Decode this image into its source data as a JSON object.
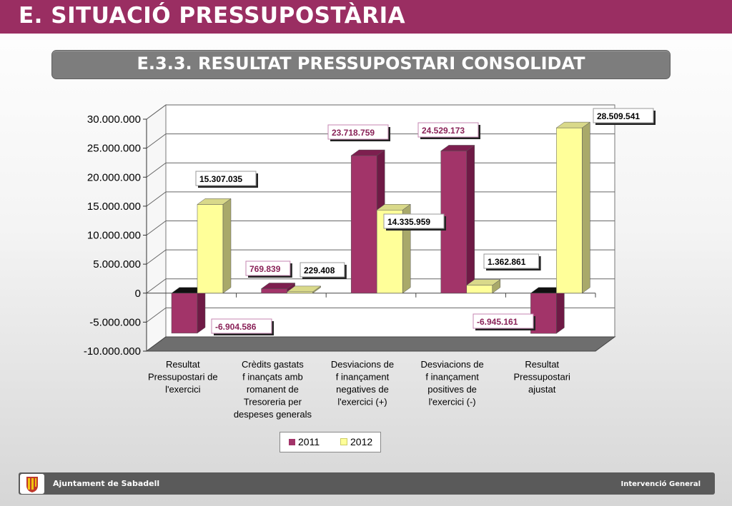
{
  "header": {
    "title": "E. SITUACIÓ PRESSUPOSTÀRIA",
    "subtitle": "E.3.3. RESULTAT PRESSUPOSTARI CONSOLIDAT"
  },
  "footer": {
    "left_label": "Ajuntament de Sabadell",
    "right_label": "Intervenció General"
  },
  "colors": {
    "header": "#9a2e62",
    "series_2011": "#a23469",
    "series_2012": "#ffff99"
  },
  "legend": {
    "position": "bottom-center"
  },
  "chart_data": {
    "type": "bar",
    "categories": [
      [
        "Resultat",
        "Pressupostari de",
        "l'exercici"
      ],
      [
        "Crèdits gastats",
        "f inançats amb",
        "romanent de",
        "Tresoreria  per",
        "despeses generals"
      ],
      [
        "Desviacions de",
        "f inançament",
        "negatives de",
        "l'exercici (+)"
      ],
      [
        "Desviacions de",
        "f inançament",
        "positives de",
        "l'exercici (-)"
      ],
      [
        "Resultat",
        "Pressupostari",
        "ajustat"
      ]
    ],
    "series": [
      {
        "name": "2011",
        "values": [
          -6904586,
          769839,
          23718759,
          24529173,
          -6945161
        ],
        "labels": [
          "-6.904.586",
          "769.839",
          "23.718.759",
          "24.529.173",
          "-6.945.161"
        ]
      },
      {
        "name": "2012",
        "values": [
          15307035,
          229408,
          14335959,
          1362861,
          28509541
        ],
        "labels": [
          "15.307.035",
          "229.408",
          "14.335.959",
          "1.362.861",
          "28.509.541"
        ]
      }
    ],
    "y_ticks": [
      "30.000.000",
      "25.000.000",
      "20.000.000",
      "15.000.000",
      "10.000.000",
      "5.000.000",
      "0",
      "-5.000.000",
      "-10.000.000"
    ],
    "ylim": [
      -10000000,
      30000000
    ],
    "grid": true,
    "three_d": true
  }
}
